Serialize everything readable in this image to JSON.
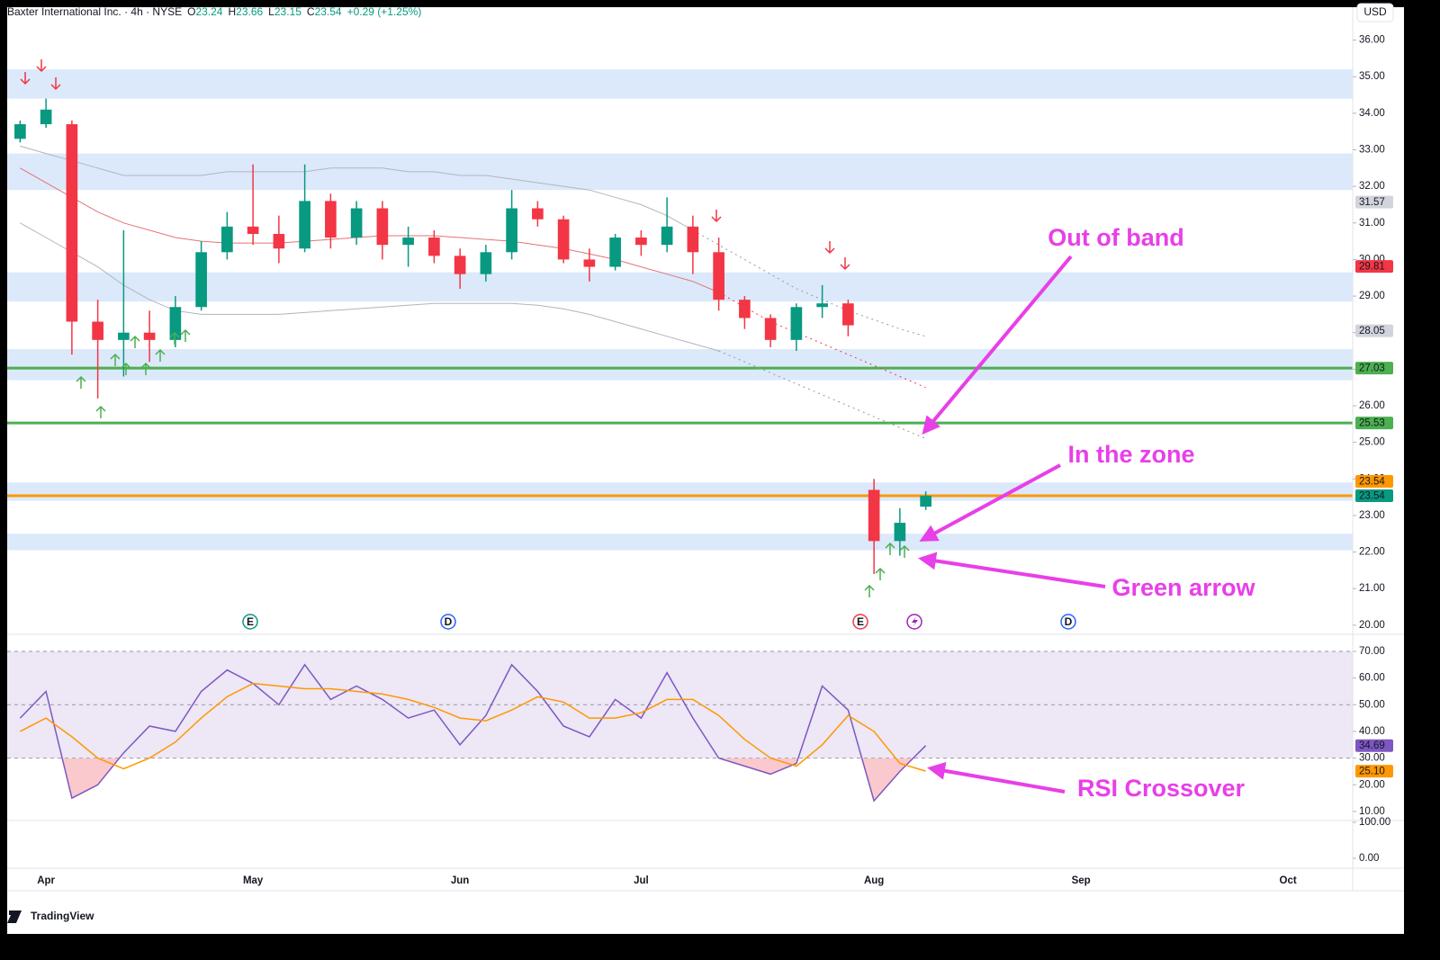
{
  "header": {
    "title": "Baxter International Inc. · 4h · NYSE",
    "ohlc": [
      [
        "O",
        "23.24"
      ],
      [
        "H",
        "23.66"
      ],
      [
        "L",
        "23.15"
      ],
      [
        "C",
        "23.54"
      ]
    ],
    "change": "+0.29 (+1.25%)",
    "currency": "USD"
  },
  "annotations": [
    "Out of band",
    "In the zone",
    "Green arrow",
    "RSI Crossover"
  ],
  "events": [
    {
      "label": "E",
      "color": "#089981"
    },
    {
      "label": "D",
      "color": "#2962ff"
    },
    {
      "label": "E",
      "color": "#f23645"
    },
    {
      "label": "D",
      "color": "#2962ff"
    }
  ],
  "logo": "TradingView",
  "chart_data": [
    {
      "type": "candlestick",
      "categories": [
        null,
        "Apr",
        null,
        null,
        null,
        null,
        null,
        null,
        null,
        "May",
        null,
        null,
        null,
        null,
        null,
        null,
        null,
        "Jun",
        null,
        null,
        null,
        null,
        null,
        null,
        "Jul",
        null,
        null,
        null,
        null,
        null,
        null,
        null,
        null,
        "Aug",
        null,
        null,
        null,
        null,
        null,
        null,
        null,
        "Sep",
        null,
        null,
        null,
        null,
        null,
        null,
        null,
        "Oct",
        null,
        null
      ],
      "candles": [
        {
          "open": 33.3,
          "high": 33.8,
          "low": 33.2,
          "close": 33.7
        },
        {
          "open": 33.7,
          "high": 34.4,
          "low": 33.6,
          "close": 34.1
        },
        {
          "open": 33.7,
          "high": 33.8,
          "low": 27.4,
          "close": 28.3
        },
        {
          "open": 28.3,
          "high": 28.9,
          "low": 26.2,
          "close": 27.8
        },
        {
          "open": 27.8,
          "high": 30.8,
          "low": 26.8,
          "close": 28.0
        },
        {
          "open": 28.0,
          "high": 28.6,
          "low": 27.2,
          "close": 27.8
        },
        {
          "open": 27.8,
          "high": 29.0,
          "low": 27.6,
          "close": 28.7
        },
        {
          "open": 28.7,
          "high": 30.5,
          "low": 28.6,
          "close": 30.2
        },
        {
          "open": 30.2,
          "high": 31.3,
          "low": 30.0,
          "close": 30.9
        },
        {
          "open": 30.9,
          "high": 32.6,
          "low": 30.4,
          "close": 30.7
        },
        {
          "open": 30.7,
          "high": 31.2,
          "low": 29.9,
          "close": 30.3
        },
        {
          "open": 30.3,
          "high": 32.6,
          "low": 30.2,
          "close": 31.6
        },
        {
          "open": 31.6,
          "high": 31.8,
          "low": 30.3,
          "close": 30.6
        },
        {
          "open": 30.6,
          "high": 31.6,
          "low": 30.4,
          "close": 31.4
        },
        {
          "open": 31.4,
          "high": 31.6,
          "low": 30.0,
          "close": 30.4
        },
        {
          "open": 30.4,
          "high": 30.9,
          "low": 29.8,
          "close": 30.6
        },
        {
          "open": 30.6,
          "high": 30.8,
          "low": 29.9,
          "close": 30.1
        },
        {
          "open": 30.1,
          "high": 30.3,
          "low": 29.2,
          "close": 29.6
        },
        {
          "open": 29.6,
          "high": 30.4,
          "low": 29.4,
          "close": 30.2
        },
        {
          "open": 30.2,
          "high": 31.9,
          "low": 30.0,
          "close": 31.4
        },
        {
          "open": 31.4,
          "high": 31.6,
          "low": 30.9,
          "close": 31.1
        },
        {
          "open": 31.1,
          "high": 31.2,
          "low": 29.9,
          "close": 30.0
        },
        {
          "open": 30.0,
          "high": 30.3,
          "low": 29.4,
          "close": 29.8
        },
        {
          "open": 29.8,
          "high": 30.7,
          "low": 29.7,
          "close": 30.6
        },
        {
          "open": 30.6,
          "high": 30.8,
          "low": 30.1,
          "close": 30.4
        },
        {
          "open": 30.4,
          "high": 31.7,
          "low": 30.2,
          "close": 30.9
        },
        {
          "open": 30.9,
          "high": 31.2,
          "low": 29.6,
          "close": 30.2
        },
        {
          "open": 30.2,
          "high": 30.6,
          "low": 28.6,
          "close": 28.9
        },
        {
          "open": 28.9,
          "high": 29.0,
          "low": 28.1,
          "close": 28.4
        },
        {
          "open": 28.4,
          "high": 28.5,
          "low": 27.6,
          "close": 27.8
        },
        {
          "open": 27.8,
          "high": 28.8,
          "low": 27.5,
          "close": 28.7
        },
        {
          "open": 28.7,
          "high": 29.3,
          "low": 28.4,
          "close": 28.8
        },
        {
          "open": 28.8,
          "high": 28.9,
          "low": 27.9,
          "close": 28.2
        },
        {
          "open": 23.7,
          "high": 24.0,
          "low": 21.4,
          "close": 22.3
        },
        {
          "open": 22.3,
          "high": 23.2,
          "low": 21.9,
          "close": 22.8
        },
        {
          "open": 23.24,
          "high": 23.66,
          "low": 23.15,
          "close": 23.54
        },
        null,
        null,
        null,
        null,
        null,
        null,
        null,
        null,
        null,
        null,
        null,
        null,
        null,
        null,
        null,
        null
      ],
      "up_color": "#089981",
      "down_color": "#f23645",
      "series": [
        {
          "color": "#b2b5be",
          "dashed": false,
          "values": [
            33.1,
            32.9,
            32.7,
            32.5,
            32.3,
            32.3,
            32.3,
            32.3,
            32.4,
            32.4,
            32.4,
            32.4,
            32.5,
            32.5,
            32.5,
            32.4,
            32.4,
            32.3,
            32.3,
            32.2,
            32.1,
            32.0,
            31.9,
            31.7,
            31.5,
            31.2,
            30.8,
            null,
            null,
            null,
            null,
            null,
            null,
            null,
            null,
            null,
            null,
            null,
            null,
            null,
            null,
            null,
            null,
            null,
            null,
            null,
            null,
            null,
            null,
            null,
            null,
            null
          ]
        },
        {
          "color": "#9598a1",
          "dashed": true,
          "values": [
            null,
            null,
            null,
            null,
            null,
            null,
            null,
            null,
            null,
            null,
            null,
            null,
            null,
            null,
            null,
            null,
            null,
            null,
            null,
            null,
            null,
            null,
            null,
            null,
            null,
            null,
            30.8,
            30.4,
            30.0,
            29.6,
            29.2,
            28.9,
            28.6,
            28.35,
            28.1,
            27.9,
            null,
            null,
            null,
            null,
            null,
            null,
            null,
            null,
            null,
            null,
            null,
            null,
            null,
            null,
            null,
            null
          ]
        },
        {
          "color": "#e57373",
          "dashed": false,
          "values": [
            32.5,
            32.1,
            31.7,
            31.3,
            31.0,
            30.8,
            30.6,
            30.5,
            30.45,
            30.45,
            30.45,
            30.5,
            30.55,
            30.6,
            30.65,
            30.65,
            30.65,
            30.6,
            30.55,
            30.5,
            30.4,
            30.3,
            30.15,
            30.0,
            29.8,
            29.6,
            29.4,
            29.1,
            null,
            null,
            null,
            null,
            null,
            null,
            null,
            null,
            null,
            null,
            null,
            null,
            null,
            null,
            null,
            null,
            null,
            null,
            null,
            null,
            null,
            null,
            null,
            null
          ]
        },
        {
          "color": "#f23645",
          "dashed": true,
          "values": [
            null,
            null,
            null,
            null,
            null,
            null,
            null,
            null,
            null,
            null,
            null,
            null,
            null,
            null,
            null,
            null,
            null,
            null,
            null,
            null,
            null,
            null,
            null,
            null,
            null,
            null,
            null,
            29.1,
            28.7,
            28.3,
            28.0,
            27.7,
            27.4,
            27.1,
            26.8,
            26.5,
            null,
            null,
            null,
            null,
            null,
            null,
            null,
            null,
            null,
            null,
            null,
            null,
            null,
            null,
            null,
            null
          ]
        },
        {
          "color": "#b2b5be",
          "dashed": false,
          "values": [
            31.0,
            30.6,
            30.2,
            29.8,
            29.3,
            28.9,
            28.6,
            28.5,
            28.5,
            28.5,
            28.5,
            28.55,
            28.6,
            28.65,
            28.7,
            28.75,
            28.8,
            28.8,
            28.8,
            28.8,
            28.75,
            28.65,
            28.5,
            28.3,
            28.1,
            27.9,
            27.7,
            27.5,
            null,
            null,
            null,
            null,
            null,
            null,
            null,
            null,
            null,
            null,
            null,
            null,
            null,
            null,
            null,
            null,
            null,
            null,
            null,
            null,
            null,
            null,
            null,
            null
          ]
        },
        {
          "color": "#9598a1",
          "dashed": true,
          "values": [
            null,
            null,
            null,
            null,
            null,
            null,
            null,
            null,
            null,
            null,
            null,
            null,
            null,
            null,
            null,
            null,
            null,
            null,
            null,
            null,
            null,
            null,
            null,
            null,
            null,
            null,
            null,
            27.5,
            27.2,
            26.9,
            26.6,
            26.3,
            26.0,
            25.7,
            25.4,
            25.1,
            null,
            null,
            null,
            null,
            null,
            null,
            null,
            null,
            null,
            null,
            null,
            null,
            null,
            null,
            null,
            null
          ]
        }
      ],
      "zones": [
        [
          34.4,
          35.2
        ],
        [
          31.9,
          32.9
        ],
        [
          28.85,
          29.65
        ],
        [
          26.7,
          27.55
        ],
        [
          23.4,
          23.9
        ],
        [
          22.05,
          22.5
        ]
      ],
      "zone_color": "#dbe9fb",
      "levels": [
        {
          "value": 27.03,
          "color": "#4caf50"
        },
        {
          "value": 25.53,
          "color": "#4caf50"
        },
        {
          "value": 23.54,
          "color": "#ff9800"
        }
      ],
      "price_labels": [
        {
          "value": 31.57,
          "color": "#d1d4dc"
        },
        {
          "value": 29.81,
          "color": "#f23645"
        },
        {
          "value": 28.05,
          "color": "#d1d4dc"
        },
        {
          "value": 27.03,
          "color": "#4caf50"
        },
        {
          "value": 25.53,
          "color": "#4caf50"
        },
        {
          "value": 23.54,
          "color": "#089981"
        },
        {
          "value": 23.54,
          "color": "#ff9800"
        }
      ],
      "ylim": [
        19.75,
        36.9
      ],
      "yticks": [
        {
          "value": 20,
          "label": "20.00"
        },
        {
          "value": 21,
          "label": "21.00"
        },
        {
          "value": 22,
          "label": "22.00"
        },
        {
          "value": 23,
          "label": "23.00"
        },
        {
          "value": 24,
          "label": "24.00"
        },
        {
          "value": 25,
          "label": "25.00"
        },
        {
          "value": 26,
          "label": "26.00"
        },
        {
          "value": 27,
          "label": "27.00"
        },
        {
          "value": 28,
          "label": "28.00"
        },
        {
          "value": 29,
          "label": "29.00"
        },
        {
          "value": 30,
          "label": "30.00"
        },
        {
          "value": 31,
          "label": "31.00"
        },
        {
          "value": 32,
          "label": "32.00"
        },
        {
          "value": 33,
          "label": "33.00"
        },
        {
          "value": 34,
          "label": "34.00"
        },
        {
          "value": 35,
          "label": "35.00"
        },
        {
          "value": 36,
          "label": "36.00"
        }
      ]
    },
    {
      "type": "line",
      "series": [
        {
          "color": "#7e57c2",
          "values": [
            45,
            55,
            15,
            20,
            32,
            42,
            40,
            55,
            63,
            58,
            50,
            65,
            52,
            57,
            52,
            45,
            48,
            35,
            46,
            65,
            55,
            42,
            38,
            52,
            45,
            62,
            45,
            30,
            27,
            24,
            28,
            57,
            48,
            14,
            25,
            34.69,
            null,
            null,
            null,
            null,
            null,
            null,
            null,
            null,
            null,
            null,
            null,
            null,
            null,
            null,
            null,
            null
          ]
        },
        {
          "color": "#ff9800",
          "values": [
            40,
            45,
            38,
            30,
            26,
            30,
            36,
            45,
            53,
            58,
            57,
            56,
            56,
            55,
            54,
            52,
            49,
            45,
            44,
            48,
            53,
            51,
            45,
            45,
            47,
            52,
            52,
            46,
            37,
            30,
            27,
            35,
            46,
            40,
            28,
            25.1,
            null,
            null,
            null,
            null,
            null,
            null,
            null,
            null,
            null,
            null,
            null,
            null,
            null,
            null,
            null,
            null
          ]
        }
      ],
      "band": [
        30,
        70
      ],
      "band_color": "#ede7f6",
      "levels": [
        70,
        50,
        30
      ],
      "oversold_color": "#f8bbc0",
      "price_labels": [
        {
          "value": 34.69,
          "color": "#7e57c2"
        },
        {
          "value": 25.1,
          "label": "25.10",
          "color": "#ff9800"
        }
      ],
      "ylim": [
        6.6,
        76.4
      ],
      "yticks": [
        {
          "value": 10,
          "label": "10.00"
        },
        {
          "value": 20,
          "label": "20.00"
        },
        {
          "value": 30,
          "label": "30.00"
        },
        {
          "value": 40,
          "label": "40.00"
        },
        {
          "value": 50,
          "label": "50.00"
        },
        {
          "value": 60,
          "label": "60.00"
        },
        {
          "value": 70,
          "label": "70.00"
        }
      ]
    },
    {
      "type": "line",
      "series": [],
      "ylim": [
        -35,
        105
      ],
      "yticks": [
        {
          "value": 100,
          "label": "100.00"
        },
        {
          "value": 0,
          "label": "0.00"
        }
      ]
    }
  ]
}
